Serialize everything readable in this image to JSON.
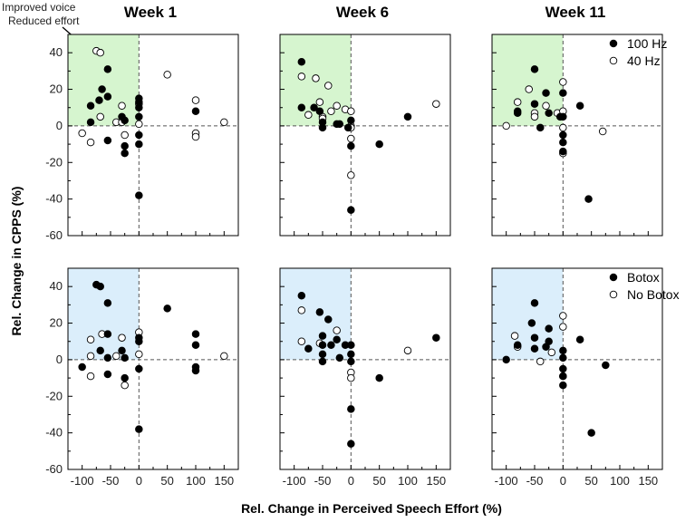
{
  "colors": {
    "green_quadrant": "#d6f5cf",
    "blue_quadrant": "#dbeefb",
    "marker_stroke": "#000000",
    "filled_marker": "#000000",
    "open_marker": "#ffffff"
  },
  "annotation": {
    "line1": "Improved voice",
    "line2": "Reduced effort"
  },
  "chart_data": {
    "type": "scatter",
    "xlabel": "Rel. Change in Perceived Speech Effort (%)",
    "ylabel": "Rel. Change in CPPS (%)",
    "xlim": [
      -125,
      175
    ],
    "ylim": [
      -60,
      50
    ],
    "xticks": [
      -100,
      -50,
      0,
      50,
      100,
      150
    ],
    "yticks": [
      -60,
      -40,
      -20,
      0,
      20,
      40
    ],
    "xtick_labels": [
      "-100",
      "-50",
      "0",
      "50",
      "100",
      "150"
    ],
    "ytick_labels": [
      "-60",
      "-40",
      "-20",
      "0",
      "20",
      "40"
    ],
    "column_titles": [
      "Week 1",
      "Week 6",
      "Week 11"
    ],
    "rows": [
      {
        "legend": [
          "100 Hz",
          "40 Hz"
        ],
        "quadrant": "green",
        "panels": [
          {
            "title": "Week 1",
            "series": [
              {
                "name": "100 Hz",
                "filled": true,
                "points": [
                  [
                    -85,
                    11
                  ],
                  [
                    -85,
                    2
                  ],
                  [
                    -70,
                    14
                  ],
                  [
                    -65,
                    20
                  ],
                  [
                    -55,
                    31
                  ],
                  [
                    -55,
                    16
                  ],
                  [
                    -55,
                    -8
                  ],
                  [
                    -30,
                    5
                  ],
                  [
                    -25,
                    3
                  ],
                  [
                    -25,
                    -11
                  ],
                  [
                    -25,
                    -15
                  ],
                  [
                    0,
                    15
                  ],
                  [
                    0,
                    13
                  ],
                  [
                    0,
                    10
                  ],
                  [
                    0,
                    5
                  ],
                  [
                    0,
                    -5
                  ],
                  [
                    0,
                    -10
                  ],
                  [
                    0,
                    -38
                  ],
                  [
                    100,
                    8
                  ]
                ]
              },
              {
                "name": "40 Hz",
                "filled": false,
                "points": [
                  [
                    -100,
                    -4
                  ],
                  [
                    -85,
                    -9
                  ],
                  [
                    -75,
                    41
                  ],
                  [
                    -68,
                    40
                  ],
                  [
                    -68,
                    5
                  ],
                  [
                    -40,
                    2
                  ],
                  [
                    -30,
                    11
                  ],
                  [
                    -30,
                    2
                  ],
                  [
                    -25,
                    -5
                  ],
                  [
                    0,
                    12
                  ],
                  [
                    0,
                    1
                  ],
                  [
                    50,
                    28
                  ],
                  [
                    100,
                    14
                  ],
                  [
                    100,
                    -4
                  ],
                  [
                    100,
                    -6
                  ],
                  [
                    150,
                    2
                  ]
                ]
              }
            ]
          },
          {
            "title": "Week 6",
            "series": [
              {
                "name": "100 Hz",
                "filled": true,
                "points": [
                  [
                    -87,
                    35
                  ],
                  [
                    -87,
                    10
                  ],
                  [
                    -65,
                    10
                  ],
                  [
                    -55,
                    8
                  ],
                  [
                    -50,
                    2
                  ],
                  [
                    -50,
                    -1
                  ],
                  [
                    -25,
                    1
                  ],
                  [
                    -20,
                    1
                  ],
                  [
                    -5,
                    -1
                  ],
                  [
                    0,
                    3
                  ],
                  [
                    0,
                    -11
                  ],
                  [
                    0,
                    -46
                  ],
                  [
                    50,
                    -10
                  ],
                  [
                    100,
                    5
                  ]
                ]
              },
              {
                "name": "40 Hz",
                "filled": false,
                "points": [
                  [
                    -87,
                    27
                  ],
                  [
                    -75,
                    6
                  ],
                  [
                    -62,
                    26
                  ],
                  [
                    -55,
                    13
                  ],
                  [
                    -50,
                    5
                  ],
                  [
                    -50,
                    4
                  ],
                  [
                    -40,
                    22
                  ],
                  [
                    -35,
                    8
                  ],
                  [
                    -25,
                    11
                  ],
                  [
                    -10,
                    9
                  ],
                  [
                    0,
                    8
                  ],
                  [
                    0,
                    0
                  ],
                  [
                    0,
                    -1
                  ],
                  [
                    0,
                    -7
                  ],
                  [
                    0,
                    -27
                  ],
                  [
                    150,
                    12
                  ]
                ]
              }
            ]
          },
          {
            "title": "Week 11",
            "series": [
              {
                "name": "100 Hz",
                "filled": true,
                "points": [
                  [
                    -80,
                    7
                  ],
                  [
                    -80,
                    8
                  ],
                  [
                    -50,
                    31
                  ],
                  [
                    -50,
                    12
                  ],
                  [
                    -40,
                    -1
                  ],
                  [
                    -30,
                    18
                  ],
                  [
                    -25,
                    7
                  ],
                  [
                    -5,
                    5
                  ],
                  [
                    0,
                    18
                  ],
                  [
                    0,
                    5
                  ],
                  [
                    0,
                    -5
                  ],
                  [
                    0,
                    -9
                  ],
                  [
                    0,
                    -14
                  ],
                  [
                    30,
                    11
                  ],
                  [
                    45,
                    -40
                  ]
                ]
              },
              {
                "name": "40 Hz",
                "filled": false,
                "points": [
                  [
                    -100,
                    0
                  ],
                  [
                    -80,
                    13
                  ],
                  [
                    -60,
                    20
                  ],
                  [
                    -50,
                    7
                  ],
                  [
                    -50,
                    5
                  ],
                  [
                    -30,
                    11
                  ],
                  [
                    -10,
                    7
                  ],
                  [
                    0,
                    24
                  ],
                  [
                    0,
                    8
                  ],
                  [
                    0,
                    -1
                  ],
                  [
                    0,
                    -15
                  ],
                  [
                    70,
                    -3
                  ]
                ]
              }
            ]
          }
        ]
      },
      {
        "legend": [
          "Botox",
          "No Botox"
        ],
        "quadrant": "blue",
        "panels": [
          {
            "title": "Week 1",
            "series": [
              {
                "name": "Botox",
                "filled": true,
                "points": [
                  [
                    -100,
                    -4
                  ],
                  [
                    -75,
                    41
                  ],
                  [
                    -68,
                    40
                  ],
                  [
                    -68,
                    5
                  ],
                  [
                    -55,
                    31
                  ],
                  [
                    -55,
                    14
                  ],
                  [
                    -55,
                    -8
                  ],
                  [
                    -55,
                    1
                  ],
                  [
                    -30,
                    5
                  ],
                  [
                    -25,
                    -10
                  ],
                  [
                    -25,
                    1
                  ],
                  [
                    0,
                    12
                  ],
                  [
                    0,
                    10
                  ],
                  [
                    0,
                    -5
                  ],
                  [
                    0,
                    -38
                  ],
                  [
                    50,
                    28
                  ],
                  [
                    100,
                    14
                  ],
                  [
                    100,
                    8
                  ],
                  [
                    100,
                    -4
                  ],
                  [
                    100,
                    -6
                  ]
                ]
              },
              {
                "name": "No Botox",
                "filled": false,
                "points": [
                  [
                    -85,
                    11
                  ],
                  [
                    -85,
                    2
                  ],
                  [
                    -85,
                    -9
                  ],
                  [
                    -65,
                    14
                  ],
                  [
                    -40,
                    2
                  ],
                  [
                    -30,
                    12
                  ],
                  [
                    -25,
                    -14
                  ],
                  [
                    0,
                    15
                  ],
                  [
                    0,
                    3
                  ],
                  [
                    150,
                    2
                  ]
                ]
              }
            ]
          },
          {
            "title": "Week 6",
            "series": [
              {
                "name": "Botox",
                "filled": true,
                "points": [
                  [
                    -87,
                    35
                  ],
                  [
                    -75,
                    6
                  ],
                  [
                    -55,
                    26
                  ],
                  [
                    -50,
                    13
                  ],
                  [
                    -50,
                    8
                  ],
                  [
                    -50,
                    3
                  ],
                  [
                    -50,
                    -1
                  ],
                  [
                    -40,
                    22
                  ],
                  [
                    -35,
                    8
                  ],
                  [
                    -25,
                    11
                  ],
                  [
                    -20,
                    1
                  ],
                  [
                    -10,
                    8
                  ],
                  [
                    0,
                    8
                  ],
                  [
                    0,
                    3
                  ],
                  [
                    0,
                    -1
                  ],
                  [
                    0,
                    -27
                  ],
                  [
                    0,
                    -46
                  ],
                  [
                    50,
                    -10
                  ],
                  [
                    150,
                    12
                  ]
                ]
              },
              {
                "name": "No Botox",
                "filled": false,
                "points": [
                  [
                    -87,
                    27
                  ],
                  [
                    -87,
                    10
                  ],
                  [
                    -55,
                    9
                  ],
                  [
                    -25,
                    16
                  ],
                  [
                    0,
                    -7
                  ],
                  [
                    0,
                    -10
                  ],
                  [
                    100,
                    5
                  ]
                ]
              }
            ]
          },
          {
            "title": "Week 11",
            "series": [
              {
                "name": "Botox",
                "filled": true,
                "points": [
                  [
                    -100,
                    0
                  ],
                  [
                    -80,
                    8
                  ],
                  [
                    -55,
                    20
                  ],
                  [
                    -50,
                    31
                  ],
                  [
                    -50,
                    12
                  ],
                  [
                    -50,
                    6
                  ],
                  [
                    -30,
                    7
                  ],
                  [
                    -25,
                    17
                  ],
                  [
                    -25,
                    10
                  ],
                  [
                    0,
                    5
                  ],
                  [
                    0,
                    1
                  ],
                  [
                    0,
                    -5
                  ],
                  [
                    0,
                    -9
                  ],
                  [
                    0,
                    -14
                  ],
                  [
                    30,
                    11
                  ],
                  [
                    50,
                    -40
                  ],
                  [
                    75,
                    -3
                  ]
                ]
              },
              {
                "name": "No Botox",
                "filled": false,
                "points": [
                  [
                    -85,
                    13
                  ],
                  [
                    -80,
                    7
                  ],
                  [
                    -40,
                    -1
                  ],
                  [
                    -20,
                    4
                  ],
                  [
                    0,
                    24
                  ],
                  [
                    0,
                    18
                  ],
                  [
                    0,
                    -9
                  ]
                ]
              }
            ]
          }
        ]
      }
    ]
  }
}
